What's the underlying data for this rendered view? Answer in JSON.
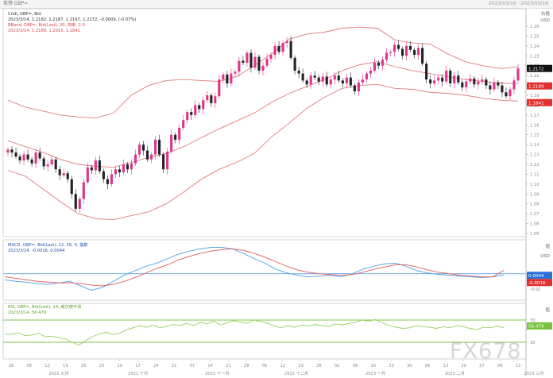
{
  "window": {
    "title": "英镑 GBP=",
    "right_info": "2023/03/16 · 2023/03/16"
  },
  "price_panel": {
    "legend": [
      {
        "text": "Cndl, GBP=, Bid",
        "color": "#333333"
      },
      {
        "text": "2023/3/14, 1.2182, 1.2187, 1.2167, 1.2172, -0.0009, (-0.07%)",
        "color": "#333333"
      },
      {
        "text": "BBand, GBP=, Bid(Last), 20, 简单, 2.0",
        "color": "#d64545"
      },
      {
        "text": "2023/3/14, 1.2189, 1.2015, 1.1841",
        "color": "#d64545"
      }
    ],
    "unit": "价格",
    "currency": "USD",
    "last_tag": "1.2172",
    "band_upper_tag": "1.2189",
    "band_lower_tag": "1.1841"
  },
  "macd_panel": {
    "legend": [
      {
        "text": "MACD, GBP=, Bid(Last), 12, 26, 9, 指数",
        "color": "#2255aa"
      },
      {
        "text": "2023/3/14, -0.0016, 0.0044",
        "color": "#2255aa"
      }
    ],
    "unit": "值",
    "currency": "USD",
    "tags": [
      "0.0044",
      "-0.0016"
    ],
    "tick_labels": [
      "0",
      "-0.02"
    ]
  },
  "rsi_panel": {
    "legend": [
      {
        "text": "RSI, GBP=, Bid(Last), 14, 威尔德平滑",
        "color": "#5aa02c"
      },
      {
        "text": "2023/3/14, 56.479",
        "color": "#5aa02c"
      }
    ],
    "unit": "值",
    "tags": [
      "56.479"
    ],
    "tick_labels": [
      "70",
      "30"
    ]
  },
  "x_axis": {
    "day_labels": [
      "26",
      "05",
      "12",
      "19",
      "26",
      "03",
      "10",
      "17",
      "24",
      "31",
      "07",
      "14",
      "21",
      "28",
      "05",
      "12",
      "19",
      "26",
      "02",
      "09",
      "16",
      "23",
      "30",
      "06",
      "13",
      "20",
      "27",
      "06",
      "13"
    ],
    "month_labels": [
      "2022 九月",
      "2022 十月",
      "2022 十一月",
      "2022 十二月",
      "2023 一月",
      "2023 二月",
      "2023 三月"
    ]
  },
  "watermark": "FX678",
  "chart_data": [
    {
      "type": "candlestick",
      "title": "Cndl, GBP=, Bid",
      "xlabel": "",
      "ylabel": "价格 USD",
      "ylim": [
        1.05,
        1.26
      ],
      "y_ticks": [
        1.26,
        1.25,
        1.24,
        1.23,
        1.22,
        1.21,
        1.2,
        1.19,
        1.18,
        1.17,
        1.16,
        1.15,
        1.14,
        1.13,
        1.12,
        1.11,
        1.1,
        1.09,
        1.08,
        1.07,
        1.06,
        1.05
      ],
      "closes": [
        1.135,
        1.132,
        1.128,
        1.124,
        1.13,
        1.125,
        1.121,
        1.132,
        1.126,
        1.118,
        1.12,
        1.125,
        1.115,
        1.109,
        1.111,
        1.105,
        1.09,
        1.075,
        1.085,
        1.102,
        1.117,
        1.114,
        1.124,
        1.113,
        1.105,
        1.1,
        1.11,
        1.115,
        1.112,
        1.12,
        1.115,
        1.121,
        1.13,
        1.14,
        1.134,
        1.125,
        1.13,
        1.145,
        1.13,
        1.115,
        1.133,
        1.15,
        1.145,
        1.157,
        1.165,
        1.173,
        1.17,
        1.18,
        1.176,
        1.185,
        1.19,
        1.182,
        1.189,
        1.206,
        1.211,
        1.202,
        1.212,
        1.214,
        1.225,
        1.223,
        1.233,
        1.218,
        1.229,
        1.215,
        1.22,
        1.227,
        1.231,
        1.24,
        1.234,
        1.243,
        1.245,
        1.228,
        1.215,
        1.212,
        1.205,
        1.201,
        1.21,
        1.208,
        1.204,
        1.209,
        1.201,
        1.206,
        1.21,
        1.205,
        1.202,
        1.208,
        1.2,
        1.194,
        1.203,
        1.206,
        1.212,
        1.215,
        1.223,
        1.22,
        1.226,
        1.233,
        1.234,
        1.241,
        1.237,
        1.23,
        1.24,
        1.236,
        1.231,
        1.238,
        1.222,
        1.206,
        1.202,
        1.205,
        1.208,
        1.204,
        1.215,
        1.202,
        1.21,
        1.203,
        1.198,
        1.204,
        1.207,
        1.201,
        1.204,
        1.206,
        1.2,
        1.196,
        1.203,
        1.2,
        1.193,
        1.189,
        1.196,
        1.205,
        1.2172
      ]
    },
    {
      "type": "line",
      "title": "BBand, GBP=, Bid(Last), 20, 简单, 2.0",
      "series": [
        {
          "name": "BBand upper",
          "values": [
            1.185,
            1.178,
            1.174,
            1.17,
            1.168,
            1.167,
            1.172,
            1.19,
            1.2,
            1.205,
            1.206,
            1.205,
            1.204,
            1.209,
            1.22,
            1.232,
            1.247,
            1.252,
            1.254,
            1.258,
            1.259,
            1.258,
            1.246,
            1.243,
            1.242,
            1.232,
            1.224,
            1.22,
            1.2172,
            1.2189
          ]
        },
        {
          "name": "BBand middle",
          "values": [
            1.144,
            1.138,
            1.132,
            1.125,
            1.12,
            1.118,
            1.117,
            1.122,
            1.127,
            1.131,
            1.138,
            1.147,
            1.156,
            1.164,
            1.172,
            1.183,
            1.192,
            1.199,
            1.206,
            1.215,
            1.221,
            1.224,
            1.219,
            1.215,
            1.212,
            1.209,
            1.206,
            1.204,
            1.2025,
            1.2015
          ]
        },
        {
          "name": "BBand lower",
          "values": [
            1.114,
            1.108,
            1.095,
            1.082,
            1.07,
            1.065,
            1.064,
            1.068,
            1.072,
            1.08,
            1.092,
            1.105,
            1.115,
            1.122,
            1.131,
            1.148,
            1.162,
            1.177,
            1.188,
            1.197,
            1.2,
            1.201,
            1.197,
            1.196,
            1.193,
            1.192,
            1.19,
            1.187,
            1.185,
            1.1841
          ]
        }
      ]
    },
    {
      "type": "line",
      "title": "MACD, GBP=, Bid(Last), 12, 26, 9, 指数",
      "ylim": [
        -0.035,
        0.045
      ],
      "series": [
        {
          "name": "MACD",
          "values": [
            -0.008,
            -0.01,
            -0.011,
            -0.013,
            -0.014,
            -0.012,
            -0.01,
            -0.016,
            -0.022,
            -0.018,
            -0.01,
            -0.002,
            0.004,
            0.01,
            0.014,
            0.02,
            0.026,
            0.03,
            0.033,
            0.035,
            0.035,
            0.033,
            0.027,
            0.02,
            0.014,
            0.006,
            0.001,
            -0.002,
            -0.004,
            -0.003,
            -0.002,
            -0.004,
            0.0,
            0.006,
            0.01,
            0.013,
            0.014,
            0.01,
            0.004,
            0.001,
            -0.001,
            -0.002,
            -0.003,
            -0.004,
            -0.005,
            -0.004,
            -0.0016
          ]
        },
        {
          "name": "Signal",
          "values": [
            -0.004,
            -0.006,
            -0.008,
            -0.01,
            -0.011,
            -0.012,
            -0.012,
            -0.013,
            -0.015,
            -0.016,
            -0.014,
            -0.01,
            -0.005,
            0.001,
            0.007,
            0.012,
            0.018,
            0.023,
            0.027,
            0.03,
            0.032,
            0.033,
            0.031,
            0.027,
            0.022,
            0.016,
            0.01,
            0.005,
            0.002,
            0.0,
            -0.001,
            -0.002,
            -0.001,
            0.002,
            0.006,
            0.009,
            0.012,
            0.012,
            0.009,
            0.005,
            0.002,
            0.0,
            -0.002,
            -0.003,
            -0.004,
            -0.004,
            0.0044
          ]
        }
      ]
    },
    {
      "type": "line",
      "title": "RSI, GBP=, Bid(Last), 14, 威尔德平滑",
      "ylim": [
        0,
        100
      ],
      "series": [
        {
          "name": "RSI",
          "values": [
            45,
            44,
            47,
            42,
            43,
            46,
            40,
            41,
            38,
            36,
            30,
            25,
            33,
            40,
            45,
            48,
            44,
            46,
            52,
            56,
            60,
            57,
            61,
            56,
            59,
            62,
            60,
            64,
            60,
            66,
            63,
            68,
            61,
            65,
            69,
            66,
            64,
            70,
            67,
            64,
            59,
            56,
            60,
            57,
            61,
            59,
            62,
            60,
            58,
            63,
            61,
            64,
            66,
            70,
            68,
            71,
            65,
            60,
            57,
            55,
            56,
            60,
            58,
            57,
            55,
            58,
            56,
            60,
            58,
            55,
            53,
            57,
            56,
            59,
            56.479
          ]
        }
      ]
    }
  ]
}
